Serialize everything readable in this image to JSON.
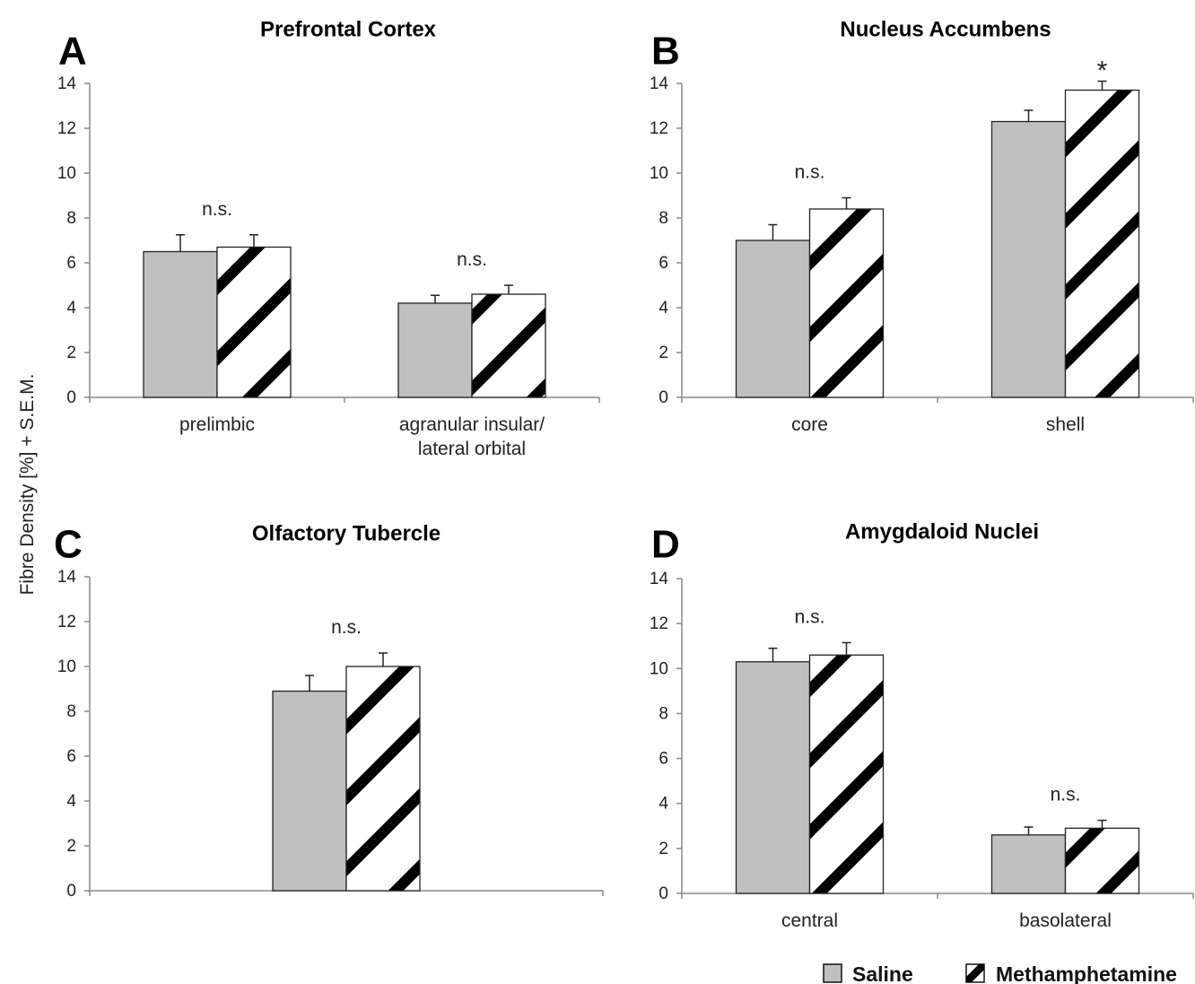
{
  "ylabel": "Fibre Density [%] + S.E.M.",
  "legend": {
    "saline": "Saline",
    "meth": "Methamphetamine"
  },
  "colors": {
    "saline": "#c0c0c0",
    "meth_stripe": "#000000",
    "meth_bg": "#ffffff",
    "axis": "#888888"
  },
  "chart_data": [
    {
      "type": "bar",
      "letter": "A",
      "title": "Prefrontal Cortex",
      "categories": [
        [
          "prelimbic"
        ],
        [
          "agranular insular/",
          "lateral orbital"
        ]
      ],
      "ylim": [
        0,
        14
      ],
      "yticks": [
        0,
        2,
        4,
        6,
        8,
        10,
        12,
        14
      ],
      "series": [
        {
          "name": "Saline",
          "values": [
            6.5,
            4.2
          ],
          "err": [
            0.75,
            0.35
          ]
        },
        {
          "name": "Methamphetamine",
          "values": [
            6.7,
            4.6
          ],
          "err": [
            0.55,
            0.4
          ]
        }
      ],
      "annotations": [
        "n.s.",
        "n.s."
      ]
    },
    {
      "type": "bar",
      "letter": "B",
      "title": "Nucleus Accumbens",
      "categories": [
        [
          "core"
        ],
        [
          "shell"
        ]
      ],
      "ylim": [
        0,
        14
      ],
      "yticks": [
        0,
        2,
        4,
        6,
        8,
        10,
        12,
        14
      ],
      "series": [
        {
          "name": "Saline",
          "values": [
            7.0,
            12.3
          ],
          "err": [
            0.7,
            0.5
          ]
        },
        {
          "name": "Methamphetamine",
          "values": [
            8.4,
            13.7
          ],
          "err": [
            0.5,
            0.4
          ]
        }
      ],
      "annotations": [
        "n.s.",
        "*"
      ]
    },
    {
      "type": "bar",
      "letter": "C",
      "title": "Olfactory Tubercle",
      "categories": [
        [
          ""
        ]
      ],
      "ylim": [
        0,
        14
      ],
      "yticks": [
        0,
        2,
        4,
        6,
        8,
        10,
        12,
        14
      ],
      "series": [
        {
          "name": "Saline",
          "values": [
            8.9
          ],
          "err": [
            0.7
          ]
        },
        {
          "name": "Methamphetamine",
          "values": [
            10.0
          ],
          "err": [
            0.6
          ]
        }
      ],
      "annotations": [
        "n.s."
      ]
    },
    {
      "type": "bar",
      "letter": "D",
      "title": "Amygdaloid Nuclei",
      "categories": [
        [
          "central"
        ],
        [
          "basolateral"
        ]
      ],
      "ylim": [
        0,
        14
      ],
      "yticks": [
        0,
        2,
        4,
        6,
        8,
        10,
        12,
        14
      ],
      "series": [
        {
          "name": "Saline",
          "values": [
            10.3,
            2.6
          ],
          "err": [
            0.6,
            0.35
          ]
        },
        {
          "name": "Methamphetamine",
          "values": [
            10.6,
            2.9
          ],
          "err": [
            0.55,
            0.35
          ]
        }
      ],
      "annotations": [
        "n.s.",
        "n.s."
      ]
    }
  ]
}
